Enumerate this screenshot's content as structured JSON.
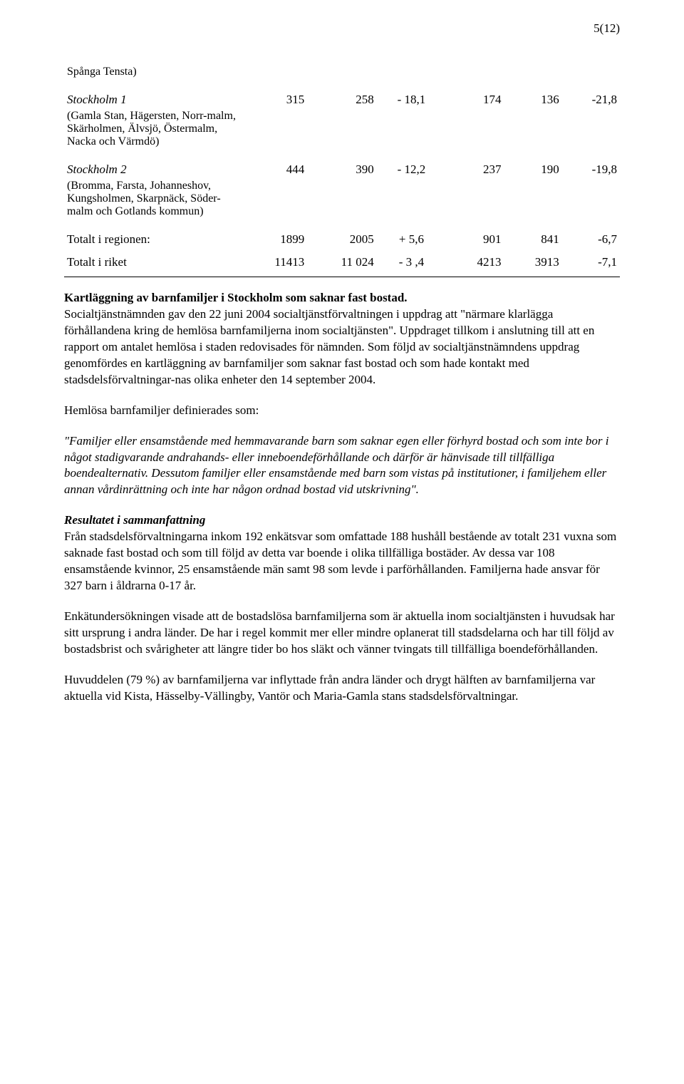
{
  "page_number": "5(12)",
  "table": {
    "rows": [
      {
        "sub": "Spånga Tensta)"
      },
      {
        "main_italic": "Stockholm 1",
        "c": [
          "315",
          "258",
          "- 18,1",
          "174",
          "136",
          "-21,8"
        ]
      },
      {
        "sub": "(Gamla Stan, Hägersten, Norr-malm, Skärholmen, Älvsjö, Östermalm, Nacka och Värmdö)"
      },
      {
        "main_italic": "Stockholm 2",
        "c": [
          "444",
          "390",
          "- 12,2",
          "237",
          "190",
          "-19,8"
        ]
      },
      {
        "sub": "(Bromma, Farsta, Johanneshov, Kungsholmen, Skarpnäck, Söder-malm och Gotlands kommun)"
      },
      {
        "main": "Totalt i regionen:",
        "c": [
          "1899",
          "2005",
          "+ 5,6",
          "901",
          "841",
          "-6,7"
        ]
      },
      {
        "main": "Totalt i riket",
        "c": [
          "11413",
          "11 024",
          "- 3 ,4",
          "4213",
          "3913",
          "-7,1"
        ]
      }
    ]
  },
  "heading1": "Kartläggning av barnfamiljer i Stockholm som saknar fast bostad.",
  "para1": "Socialtjänstnämnden gav den 22 juni 2004 socialtjänstförvaltningen i uppdrag att \"närmare klarlägga förhållandena kring de hemlösa barnfamiljerna inom socialtjänsten\". Uppdraget tillkom i anslutning till att en rapport om antalet hemlösa i staden redovisades för nämnden. Som följd av socialtjänstnämndens uppdrag genomfördes en kartläggning av barnfamiljer som saknar fast bostad och som hade kontakt med stadsdelsförvaltningar-nas olika enheter den 14 september 2004.",
  "para2": "Hemlösa barnfamiljer definierades som:",
  "para3_italic": "\"Familjer eller ensamstående med hemmavarande barn som saknar egen eller förhyrd bostad och som inte bor i något stadigvarande andrahands- eller inneboendeförhållande och därför är hänvisade till tillfälliga boendealternativ. Dessutom familjer eller ensamstående med barn som vistas på institutioner, i familjehem eller annan vårdinrättning och inte har någon ordnad bostad vid utskrivning\".",
  "heading2": "Resultatet i sammanfattning",
  "para4": "Från stadsdelsförvaltningarna inkom 192 enkätsvar som omfattade 188 hushåll bestående av totalt 231 vuxna som saknade fast bostad och som till följd av detta var boende i olika tillfälliga bostäder. Av dessa var 108 ensamstående kvinnor, 25 ensamstående män samt 98 som levde i parförhållanden. Familjerna hade ansvar för 327 barn i åldrarna 0-17 år.",
  "para5": "Enkätundersökningen visade att de bostadslösa barnfamiljerna som är aktuella inom socialtjänsten i huvudsak har sitt ursprung i andra länder. De har i regel kommit mer eller mindre oplanerat till stadsdelarna och har till följd av bostadsbrist och svårigheter att längre tider bo hos släkt och vänner tvingats till tillfälliga boendeförhållanden.",
  "para6": "Huvuddelen (79 %) av  barnfamiljerna var inflyttade från andra länder och drygt hälften av barnfamiljerna var aktuella vid Kista, Hässelby-Vällingby, Vantör och Maria-Gamla stans stadsdelsförvaltningar."
}
